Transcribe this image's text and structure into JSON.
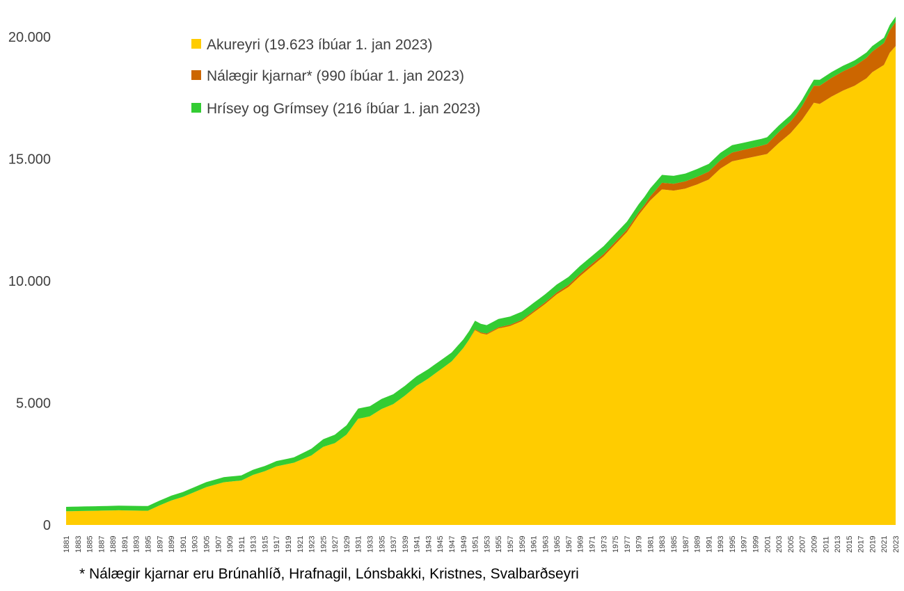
{
  "chart_data": {
    "type": "area",
    "stacked": true,
    "y_axis": {
      "ylim": [
        0,
        20000
      ],
      "ticks": [
        0,
        5000,
        10000,
        15000,
        20000
      ],
      "tick_labels": [
        "0",
        "5.000",
        "10.000",
        "15.000",
        "20.000"
      ]
    },
    "x_axis": {
      "start": 1881,
      "end": 2023,
      "label_step": 2
    },
    "legend_position": "top-center",
    "grid": false,
    "series": [
      {
        "name": "Akureyri (19.623 íbúar 1. jan 2023)",
        "color": "#ffcc00",
        "keyframes": [
          [
            1881,
            560
          ],
          [
            1890,
            600
          ],
          [
            1895,
            580
          ],
          [
            1897,
            800
          ],
          [
            1899,
            1000
          ],
          [
            1901,
            1150
          ],
          [
            1903,
            1350
          ],
          [
            1905,
            1550
          ],
          [
            1908,
            1750
          ],
          [
            1911,
            1820
          ],
          [
            1913,
            2050
          ],
          [
            1915,
            2200
          ],
          [
            1917,
            2400
          ],
          [
            1920,
            2550
          ],
          [
            1923,
            2850
          ],
          [
            1925,
            3200
          ],
          [
            1927,
            3350
          ],
          [
            1929,
            3700
          ],
          [
            1931,
            4350
          ],
          [
            1933,
            4450
          ],
          [
            1935,
            4750
          ],
          [
            1937,
            4950
          ],
          [
            1939,
            5300
          ],
          [
            1941,
            5700
          ],
          [
            1943,
            6000
          ],
          [
            1945,
            6350
          ],
          [
            1947,
            6700
          ],
          [
            1949,
            7250
          ],
          [
            1950,
            7600
          ],
          [
            1951,
            7980
          ],
          [
            1952,
            7850
          ],
          [
            1953,
            7800
          ],
          [
            1955,
            8050
          ],
          [
            1957,
            8150
          ],
          [
            1959,
            8350
          ],
          [
            1961,
            8700
          ],
          [
            1963,
            9050
          ],
          [
            1965,
            9450
          ],
          [
            1967,
            9750
          ],
          [
            1969,
            10200
          ],
          [
            1971,
            10600
          ],
          [
            1973,
            11000
          ],
          [
            1975,
            11500
          ],
          [
            1977,
            12000
          ],
          [
            1979,
            12700
          ],
          [
            1981,
            13300
          ],
          [
            1983,
            13750
          ],
          [
            1985,
            13700
          ],
          [
            1987,
            13780
          ],
          [
            1989,
            13950
          ],
          [
            1991,
            14150
          ],
          [
            1993,
            14600
          ],
          [
            1995,
            14900
          ],
          [
            1997,
            15000
          ],
          [
            1999,
            15100
          ],
          [
            2001,
            15200
          ],
          [
            2003,
            15650
          ],
          [
            2005,
            16050
          ],
          [
            2007,
            16600
          ],
          [
            2009,
            17300
          ],
          [
            2010,
            17250
          ],
          [
            2012,
            17550
          ],
          [
            2014,
            17800
          ],
          [
            2016,
            18000
          ],
          [
            2018,
            18300
          ],
          [
            2019,
            18550
          ],
          [
            2021,
            18850
          ],
          [
            2022,
            19350
          ],
          [
            2023,
            19623
          ]
        ]
      },
      {
        "name": "Nálægir kjarnar* (990 íbúar 1. jan 2023)",
        "color": "#cc6600",
        "keyframes": [
          [
            1881,
            0
          ],
          [
            1950,
            0
          ],
          [
            1951,
            40
          ],
          [
            1955,
            50
          ],
          [
            1960,
            60
          ],
          [
            1965,
            80
          ],
          [
            1970,
            100
          ],
          [
            1975,
            100
          ],
          [
            1980,
            110
          ],
          [
            1983,
            270
          ],
          [
            1990,
            320
          ],
          [
            1995,
            360
          ],
          [
            2000,
            390
          ],
          [
            2003,
            450
          ],
          [
            2006,
            500
          ],
          [
            2008,
            650
          ],
          [
            2010,
            750
          ],
          [
            2015,
            800
          ],
          [
            2019,
            850
          ],
          [
            2022,
            920
          ],
          [
            2023,
            990
          ]
        ]
      },
      {
        "name": "Hrísey og Grímsey (216 íbúar 1. jan 2023)",
        "color": "#33cc33",
        "keyframes": [
          [
            1881,
            180
          ],
          [
            1900,
            200
          ],
          [
            1920,
            220
          ],
          [
            1931,
            420
          ],
          [
            1940,
            400
          ],
          [
            1950,
            350
          ],
          [
            1960,
            330
          ],
          [
            1970,
            320
          ],
          [
            1980,
            330
          ],
          [
            1985,
            320
          ],
          [
            1990,
            320
          ],
          [
            1995,
            300
          ],
          [
            2000,
            280
          ],
          [
            2005,
            260
          ],
          [
            2010,
            240
          ],
          [
            2015,
            225
          ],
          [
            2020,
            220
          ],
          [
            2023,
            216
          ]
        ]
      }
    ],
    "footnote": "* Nálægir kjarnar eru Brúnahlíð, Hrafnagil, Lónsbakki, Kristnes, Svalbarðseyri"
  }
}
